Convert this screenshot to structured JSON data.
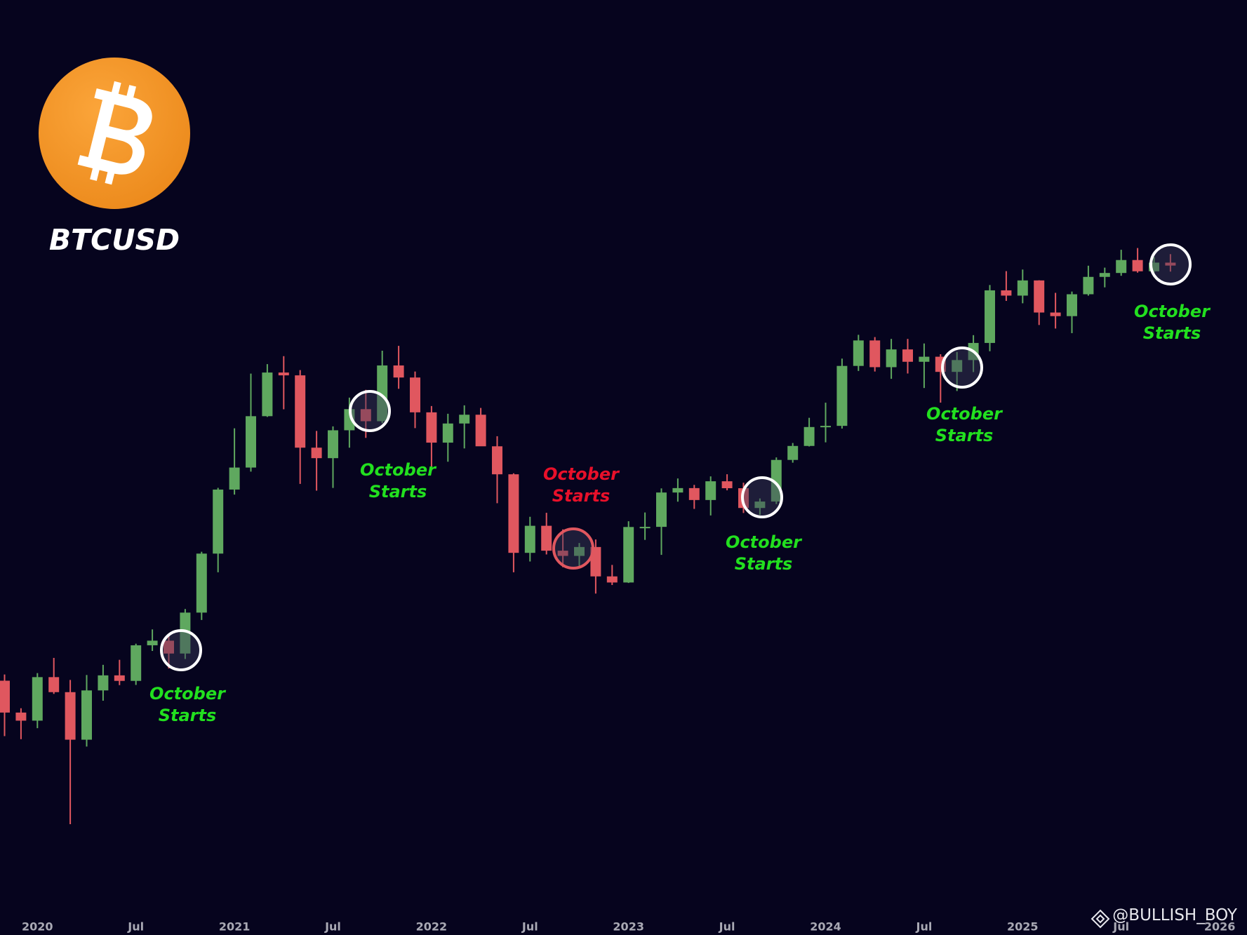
{
  "chart_data": {
    "type": "candlestick",
    "title": "BTCUSD",
    "watermark": "@BULLISH_BOY",
    "yscale": "log",
    "ylim": [
      2240,
      556000
    ],
    "up_color": "#5fa85f",
    "down_color": "#e0575f",
    "categories": [
      null,
      null,
      "2020",
      null,
      null,
      null,
      null,
      null,
      "Jul",
      null,
      null,
      null,
      null,
      null,
      "2021",
      null,
      null,
      null,
      null,
      null,
      "Jul",
      null,
      null,
      null,
      null,
      null,
      "2022",
      null,
      null,
      null,
      null,
      null,
      "Jul",
      null,
      null,
      null,
      null,
      null,
      "2023",
      null,
      null,
      null,
      null,
      null,
      "Jul",
      null,
      null,
      null,
      null,
      null,
      "2024",
      null,
      null,
      null,
      null,
      null,
      "Jul",
      null,
      null,
      null,
      null,
      null,
      "2025",
      null,
      null,
      null,
      null,
      null,
      "Jul",
      null,
      null,
      null,
      null,
      null,
      "2026"
    ],
    "open": [
      9150,
      7550,
      7190,
      9350,
      8540,
      6410,
      8630,
      9450,
      9140,
      11330,
      11650,
      10780,
      13800,
      19700,
      28990,
      33110,
      45140,
      58740,
      57750,
      37330,
      35040,
      41460,
      47100,
      43790,
      61300,
      57000,
      46200,
      38480,
      43190,
      45540,
      37640,
      31790,
      19790,
      23300,
      20050,
      19430,
      20500,
      17170,
      16550,
      23130,
      23150,
      28480,
      29250,
      27220,
      30480,
      29230,
      25940,
      26970,
      34670,
      37720,
      42280,
      42580,
      61130,
      71290,
      60670,
      67530,
      62680,
      64620,
      58970,
      63330,
      70220,
      96450,
      93430,
      102400,
      84370,
      82550,
      94200,
      104600,
      107100,
      115800,
      108200,
      114000,
      null,
      null,
      null
    ],
    "high": [
      9500,
      7750,
      9580,
      10500,
      9190,
      9470,
      10070,
      10380,
      11440,
      12470,
      12090,
      14100,
      19920,
      29300,
      41950,
      58350,
      61790,
      64850,
      59600,
      41300,
      42450,
      50480,
      52920,
      67000,
      69000,
      59100,
      47990,
      45800,
      48190,
      47440,
      40000,
      31990,
      24600,
      25200,
      22800,
      21000,
      21450,
      18400,
      23950,
      25250,
      29200,
      31000,
      29820,
      31390,
      31800,
      30220,
      27480,
      35200,
      38400,
      44700,
      48970,
      63900,
      73750,
      72750,
      71950,
      71950,
      70000,
      65600,
      66500,
      73600,
      99600,
      108300,
      109350,
      102500,
      95000,
      95750,
      111900,
      110600,
      123200,
      124500,
      117900,
      120000,
      null,
      null,
      null
    ],
    "low": [
      6550,
      6430,
      6870,
      8450,
      3850,
      6150,
      8110,
      8910,
      8920,
      10950,
      9850,
      10430,
      13200,
      17600,
      28130,
      32300,
      44950,
      47050,
      30000,
      28800,
      29280,
      37330,
      39600,
      43280,
      53250,
      42000,
      32950,
      34300,
      37160,
      37700,
      26700,
      17600,
      18780,
      19600,
      18150,
      18200,
      15480,
      16300,
      16500,
      21400,
      19550,
      26950,
      25800,
      24800,
      28860,
      25170,
      24900,
      26560,
      34100,
      37600,
      38550,
      41880,
      59300,
      59100,
      56550,
      58400,
      53500,
      49000,
      52550,
      58900,
      66800,
      90500,
      89200,
      78250,
      76600,
      74500,
      93400,
      98200,
      105300,
      107300,
      107300,
      108000,
      null,
      null,
      null
    ],
    "close": [
      7550,
      7190,
      9350,
      8540,
      6410,
      8630,
      9450,
      9140,
      11330,
      11650,
      10780,
      13800,
      19700,
      28990,
      33110,
      45140,
      58740,
      57750,
      37330,
      35040,
      41460,
      47100,
      43790,
      61300,
      57000,
      46200,
      38480,
      43190,
      45540,
      37640,
      31790,
      19790,
      23300,
      20050,
      19430,
      20500,
      17170,
      16550,
      23130,
      23150,
      28480,
      29250,
      27220,
      30480,
      29230,
      25940,
      26970,
      34670,
      37720,
      42280,
      42580,
      61130,
      71290,
      60670,
      67530,
      62680,
      64620,
      58970,
      63330,
      70220,
      96450,
      93430,
      102400,
      84370,
      82550,
      94200,
      104600,
      107100,
      115800,
      108200,
      114000,
      112000,
      null,
      null,
      null
    ],
    "annotations": [
      {
        "text": "October Starts",
        "color": "#22e01f"
      },
      {
        "text": "October Starts",
        "color": "#22e01f"
      },
      {
        "text": "October Starts",
        "color": "#e8102a"
      },
      {
        "text": "October Starts",
        "color": "#22e01f"
      },
      {
        "text": "October Starts",
        "color": "#22e01f"
      },
      {
        "text": "October Starts",
        "color": "#22e01f"
      }
    ]
  }
}
